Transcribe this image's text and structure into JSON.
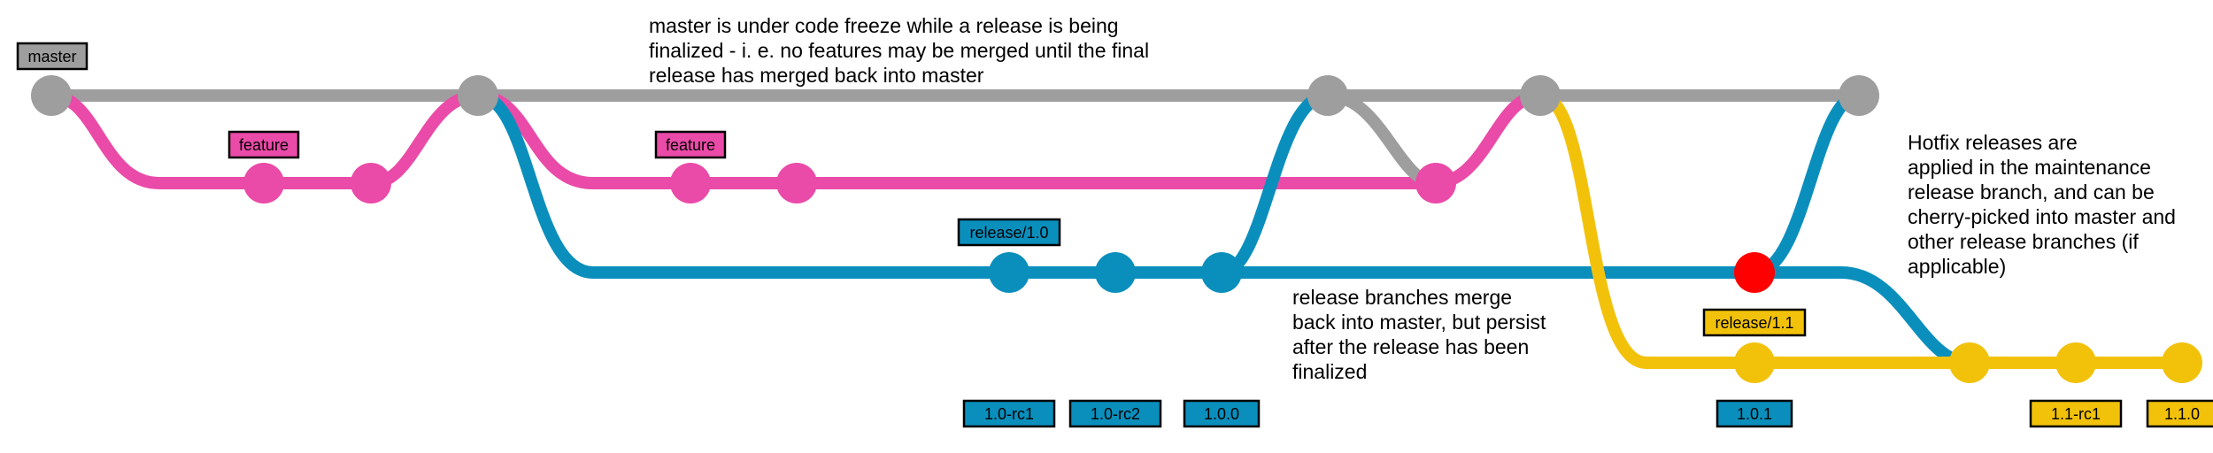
{
  "colors": {
    "master": "#9e9e9e",
    "feature": "#ea4aa8",
    "release": "#0a8fbd",
    "release11": "#f2c20b",
    "hotfix": "#ff0000"
  },
  "tags": {
    "master": "master",
    "feature1": "feature",
    "feature2": "feature",
    "release10": "release/1.0",
    "release11": "release/1.1",
    "rc1": "1.0-rc1",
    "rc2": "1.0-rc2",
    "v100": "1.0.0",
    "v101": "1.0.1",
    "rc11": "1.1-rc1",
    "v110": "1.1.0"
  },
  "notes": {
    "freeze": [
      "master is under code freeze while a release is being",
      "finalized - i. e. no features may be merged until the final",
      "release has merged back into master"
    ],
    "release_merge": [
      "release branches merge",
      "back into master, but persist",
      "after the release has been",
      "finalized"
    ],
    "hotfix": [
      "Hotfix releases are",
      "applied in the maintenance",
      "release branch, and can be",
      "cherry-picked into master and",
      "other release branches (if",
      "applicable)"
    ]
  }
}
